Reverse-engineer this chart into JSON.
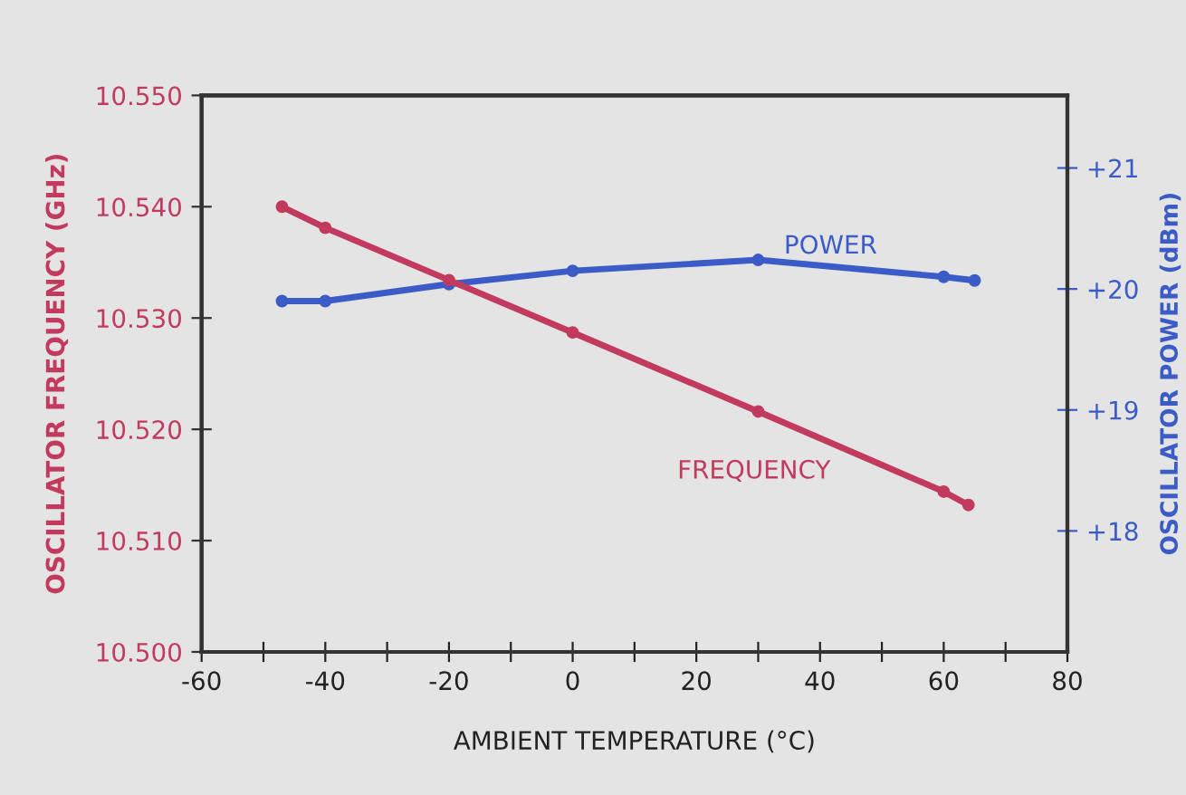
{
  "chart_data": {
    "type": "line",
    "xlabel": "AMBIENT TEMPERATURE (°C)",
    "ylabel": "OSCILLATOR FREQUENCY (GHz)",
    "y2label": "OSCILLATOR POWER (dBm)",
    "xlim": [
      -60,
      80
    ],
    "xticks": [
      -60,
      {
        "value": -50,
        "label": null
      },
      -40,
      {
        "value": -30,
        "label": null
      },
      -20,
      {
        "value": -10,
        "label": null
      },
      0,
      {
        "value": 10,
        "label": null
      },
      20,
      {
        "value": 30,
        "label": null
      },
      40,
      {
        "value": 50,
        "label": null
      },
      60,
      {
        "value": 70,
        "label": null
      },
      80
    ],
    "ylim": [
      10.5,
      10.55
    ],
    "yticks": [
      {
        "value": 10.5,
        "label": "10.500"
      },
      {
        "value": 10.51,
        "label": "10.510"
      },
      {
        "value": 10.52,
        "label": "10.520"
      },
      {
        "value": 10.53,
        "label": "10.530"
      },
      {
        "value": 10.54,
        "label": "10.540"
      },
      {
        "value": 10.55,
        "label": "10.550"
      }
    ],
    "y2lim": [
      17,
      21.6
    ],
    "y2ticks": [
      {
        "value": 18,
        "label": "+18"
      },
      {
        "value": 19,
        "label": "+19"
      },
      {
        "value": 20,
        "label": "+20"
      },
      {
        "value": 21,
        "label": "+21"
      }
    ],
    "marker": "circle",
    "grid": false,
    "series": [
      {
        "name": "FREQUENCY",
        "color": "#c23a5e",
        "x": [
          -47,
          -40,
          -20,
          0,
          30,
          60,
          64
        ],
        "values": [
          10.54,
          10.5381,
          10.5334,
          10.5287,
          10.5216,
          10.5144,
          10.5132
        ]
      },
      {
        "name": "POWER",
        "color": "#3b5cc6",
        "axis": "y2",
        "x": [
          -47,
          -40,
          -20,
          0,
          30,
          60,
          65
        ],
        "values": [
          19.9,
          19.9,
          20.04,
          20.15,
          20.24,
          20.1,
          20.07
        ]
      }
    ]
  }
}
